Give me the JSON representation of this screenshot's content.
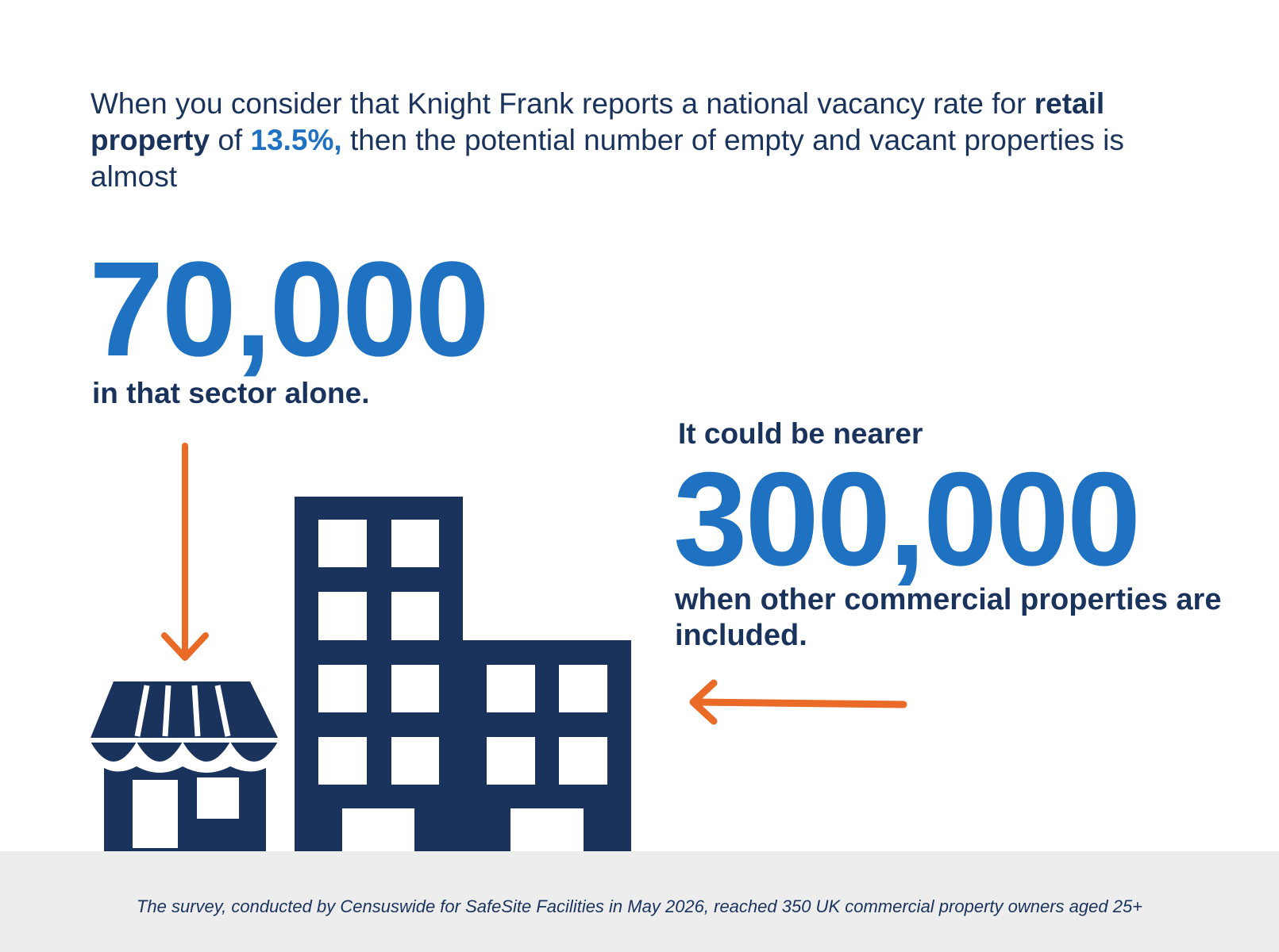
{
  "intro": {
    "part1": "When you consider that Knight Frank reports a national vacancy rate for ",
    "bold": "retail property",
    "part2": " of ",
    "accent": "13.5%,",
    "part3": " then the potential number of empty and vacant properties is almost"
  },
  "stat_retail": {
    "number": "70,000",
    "caption": "in that sector alone."
  },
  "stat_commercial": {
    "lead": "It could be nearer",
    "number": "300,000",
    "caption": "when other commercial properties are included."
  },
  "footnote": "The survey, conducted by Censuswide for SafeSite Facilities in May 2026, reached 350 UK commercial property owners aged 25+",
  "colors": {
    "navy": "#1a335c",
    "blue": "#1f72c2",
    "orange": "#ea6a27",
    "footer_bg": "#ededed"
  },
  "icons": [
    "down-arrow-icon",
    "left-arrow-icon",
    "shop-icon",
    "office-building-icon"
  ]
}
